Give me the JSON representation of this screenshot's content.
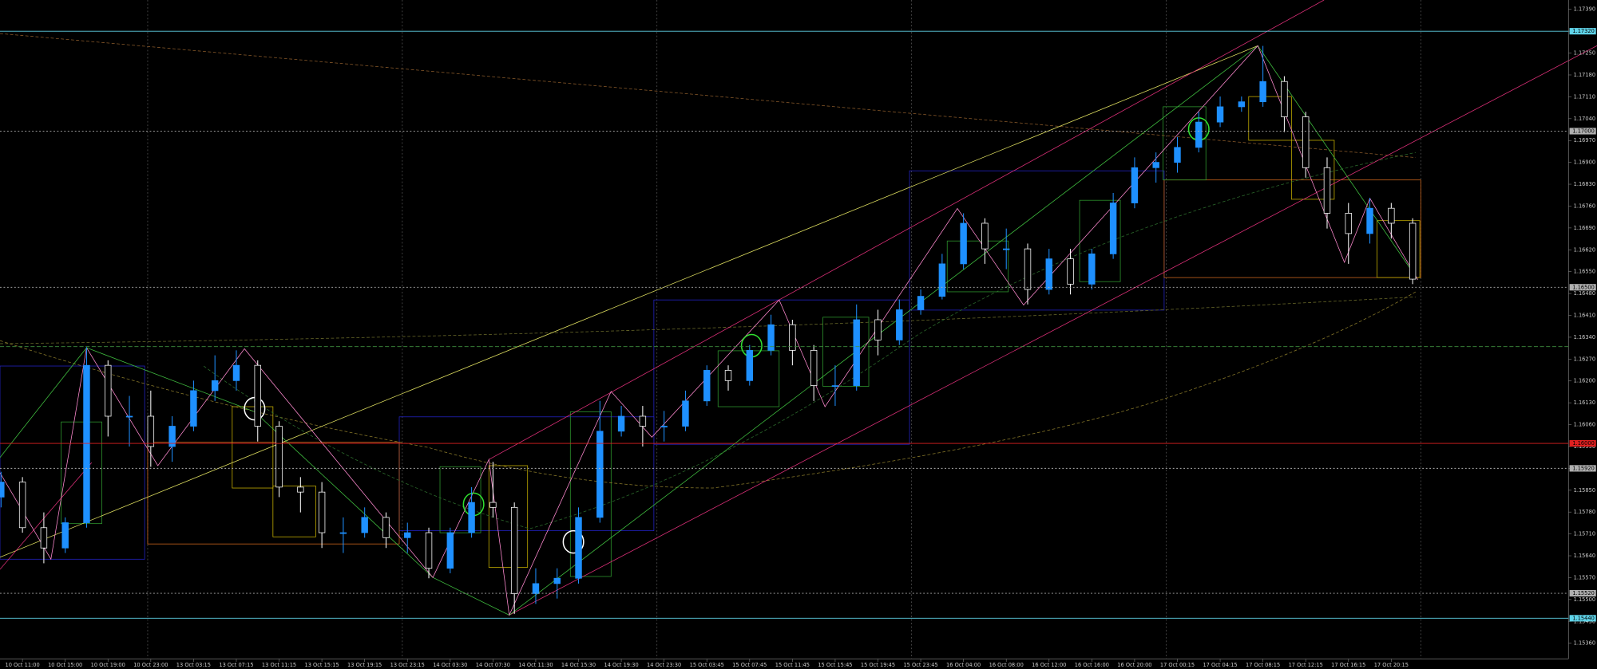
{
  "chart_data": {
    "type": "candlestick",
    "up_color": "#1e90ff",
    "down_color": "#ffffff",
    "ylim": [
      1.1531,
      1.1742
    ],
    "xlim": [
      -0.05,
      74.62
    ],
    "yticks": [
      {
        "value": 1.1739,
        "label": "1.17390"
      },
      {
        "value": 1.1732,
        "label": "1.17320"
      },
      {
        "value": 1.1725,
        "label": "1.17250"
      },
      {
        "value": 1.1718,
        "label": "1.17180"
      },
      {
        "value": 1.1711,
        "label": "1.17110"
      },
      {
        "value": 1.1704,
        "label": "1.17040"
      },
      {
        "value": 1.1697,
        "label": "1.16970"
      },
      {
        "value": 1.169,
        "label": "1.16900"
      },
      {
        "value": 1.1683,
        "label": "1.16830"
      },
      {
        "value": 1.1676,
        "label": "1.16760"
      },
      {
        "value": 1.1669,
        "label": "1.16690"
      },
      {
        "value": 1.1662,
        "label": "1.16620"
      },
      {
        "value": 1.1655,
        "label": "1.16550"
      },
      {
        "value": 1.1648,
        "label": "1.16480"
      },
      {
        "value": 1.1641,
        "label": "1.16410"
      },
      {
        "value": 1.1634,
        "label": "1.16340"
      },
      {
        "value": 1.1627,
        "label": "1.16270"
      },
      {
        "value": 1.162,
        "label": "1.16200"
      },
      {
        "value": 1.1613,
        "label": "1.16130"
      },
      {
        "value": 1.1606,
        "label": "1.16060"
      },
      {
        "value": 1.1599,
        "label": "1.15990"
      },
      {
        "value": 1.1592,
        "label": "1.15920"
      },
      {
        "value": 1.1585,
        "label": "1.15850"
      },
      {
        "value": 1.1578,
        "label": "1.15780"
      },
      {
        "value": 1.1571,
        "label": "1.15710"
      },
      {
        "value": 1.1564,
        "label": "1.15640"
      },
      {
        "value": 1.1557,
        "label": "1.15570"
      },
      {
        "value": 1.155,
        "label": "1.15500"
      },
      {
        "value": 1.1543,
        "label": "1.15430"
      },
      {
        "value": 1.1536,
        "label": "1.15360"
      }
    ],
    "xticks": [
      {
        "value": 1,
        "label": "10 Oct 11:00"
      },
      {
        "value": 3,
        "label": "10 Oct 15:00"
      },
      {
        "value": 5,
        "label": "10 Oct 19:00"
      },
      {
        "value": 7,
        "label": "10 Oct 23:00"
      },
      {
        "value": 9,
        "label": "13 Oct 03:15"
      },
      {
        "value": 11,
        "label": "13 Oct 07:15"
      },
      {
        "value": 13,
        "label": "13 Oct 11:15"
      },
      {
        "value": 15,
        "label": "13 Oct 15:15"
      },
      {
        "value": 17,
        "label": "13 Oct 19:15"
      },
      {
        "value": 19,
        "label": "13 Oct 23:15"
      },
      {
        "value": 21,
        "label": "14 Oct 03:30"
      },
      {
        "value": 23,
        "label": "14 Oct 07:30"
      },
      {
        "value": 25,
        "label": "14 Oct 11:30"
      },
      {
        "value": 27,
        "label": "14 Oct 15:30"
      },
      {
        "value": 29,
        "label": "14 Oct 19:30"
      },
      {
        "value": 31,
        "label": "14 Oct 23:30"
      },
      {
        "value": 33,
        "label": "15 Oct 03:45"
      },
      {
        "value": 35,
        "label": "15 Oct 07:45"
      },
      {
        "value": 37,
        "label": "15 Oct 11:45"
      },
      {
        "value": 39,
        "label": "15 Oct 15:45"
      },
      {
        "value": 41,
        "label": "15 Oct 19:45"
      },
      {
        "value": 43,
        "label": "15 Oct 23:45"
      },
      {
        "value": 45,
        "label": "16 Oct 04:00"
      },
      {
        "value": 47,
        "label": "16 Oct 08:00"
      },
      {
        "value": 49,
        "label": "16 Oct 12:00"
      },
      {
        "value": 51,
        "label": "16 Oct 16:00"
      },
      {
        "value": 53,
        "label": "16 Oct 20:00"
      },
      {
        "value": 55,
        "label": "17 Oct 00:15"
      },
      {
        "value": 57,
        "label": "17 Oct 04:15"
      },
      {
        "value": 59,
        "label": "17 Oct 08:15"
      },
      {
        "value": 61,
        "label": "17 Oct 12:15"
      },
      {
        "value": 63,
        "label": "17 Oct 16:15"
      },
      {
        "value": 65,
        "label": "17 Oct 20:15"
      }
    ],
    "open": [
      1.15828,
      1.15876,
      1.1573,
      1.15665,
      1.15746,
      1.1625,
      1.16087,
      1.16087,
      1.1599,
      1.16055,
      1.16169,
      1.16201,
      1.1625,
      1.16055,
      1.1586,
      1.15844,
      1.15714,
      1.15714,
      1.15763,
      1.15698,
      1.15714,
      1.156,
      1.15714,
      1.15811,
      1.15795,
      1.15519,
      1.15551,
      1.15568,
      1.15763,
      1.16039,
      1.16087,
      1.16055,
      1.16055,
      1.16136,
      1.16234,
      1.16201,
      1.16298,
      1.1638,
      1.16298,
      1.16185,
      1.16185,
      1.16396,
      1.16331,
      1.16428,
      1.16471,
      1.16575,
      1.16705,
      1.16623,
      1.16623,
      1.16493,
      1.16591,
      1.1651,
      1.16607,
      1.1677,
      1.16883,
      1.169,
      1.16948,
      1.17029,
      1.17078,
      1.17094,
      1.17159,
      1.17046,
      1.16883,
      1.16737,
      1.16672,
      1.16753,
      1.16705
    ],
    "high": [
      1.15909,
      1.15892,
      1.15779,
      1.15763,
      1.16308,
      1.16266,
      1.16152,
      1.16169,
      1.16087,
      1.16201,
      1.16282,
      1.16298,
      1.16266,
      1.16071,
      1.15892,
      1.15876,
      1.15763,
      1.15795,
      1.15779,
      1.15746,
      1.1573,
      1.1573,
      1.1586,
      1.15941,
      1.15811,
      1.156,
      1.156,
      1.15795,
      1.16136,
      1.1612,
      1.1612,
      1.16104,
      1.16169,
      1.1625,
      1.1625,
      1.16315,
      1.16412,
      1.16396,
      1.16315,
      1.1625,
      1.16445,
      1.16428,
      1.16461,
      1.16493,
      1.16607,
      1.16737,
      1.16721,
      1.16688,
      1.1664,
      1.16623,
      1.16623,
      1.16623,
      1.16802,
      1.16916,
      1.16932,
      1.16981,
      1.17062,
      1.17111,
      1.17111,
      1.17273,
      1.17176,
      1.17062,
      1.16916,
      1.1677,
      1.16786,
      1.1677,
      1.16721
    ],
    "low": [
      1.15795,
      1.15714,
      1.15616,
      1.15649,
      1.1573,
      1.16022,
      1.1599,
      1.15925,
      1.15941,
      1.16039,
      1.16136,
      1.16169,
      1.16006,
      1.15828,
      1.15779,
      1.15665,
      1.15649,
      1.15698,
      1.15665,
      1.15649,
      1.15568,
      1.15584,
      1.15698,
      1.15763,
      1.15454,
      1.15486,
      1.15503,
      1.15551,
      1.15746,
      1.16022,
      1.1599,
      1.16006,
      1.16039,
      1.1612,
      1.16169,
      1.16185,
      1.16282,
      1.1625,
      1.16136,
      1.1612,
      1.16169,
      1.16282,
      1.16315,
      1.16412,
      1.16461,
      1.16558,
      1.16575,
      1.16558,
      1.16445,
      1.16477,
      1.16477,
      1.16493,
      1.16591,
      1.16753,
      1.16835,
      1.16867,
      1.16932,
      1.17013,
      1.17062,
      1.17078,
      1.16997,
      1.16851,
      1.16688,
      1.16575,
      1.1664,
      1.16656,
      1.1651
    ],
    "close": [
      1.15876,
      1.1573,
      1.15665,
      1.15746,
      1.1625,
      1.16087,
      1.16087,
      1.1599,
      1.16055,
      1.16169,
      1.16201,
      1.1625,
      1.16055,
      1.1586,
      1.15844,
      1.15714,
      1.15714,
      1.15763,
      1.15698,
      1.15714,
      1.156,
      1.15714,
      1.15811,
      1.15795,
      1.15519,
      1.15551,
      1.15568,
      1.15763,
      1.16039,
      1.16087,
      1.16055,
      1.16055,
      1.16136,
      1.16234,
      1.16201,
      1.16298,
      1.1638,
      1.16298,
      1.16185,
      1.16185,
      1.16396,
      1.16331,
      1.16428,
      1.16471,
      1.16575,
      1.16705,
      1.16623,
      1.16623,
      1.16493,
      1.16591,
      1.1651,
      1.16607,
      1.1677,
      1.16883,
      1.169,
      1.16948,
      1.17029,
      1.17078,
      1.17094,
      1.17159,
      1.17046,
      1.16883,
      1.16737,
      1.16672,
      1.16753,
      1.16705,
      1.16526
    ],
    "levels": [
      {
        "value": 1.1732,
        "label": "1.17320",
        "color": "#5fd3e8",
        "style": "solid"
      },
      {
        "value": 1.17,
        "label": "1.17000",
        "color": "#b0b0b0",
        "style": "dotted"
      },
      {
        "value": 1.165,
        "label": "1.16500",
        "color": "#b0b0b0",
        "style": "dotted"
      },
      {
        "value": 1.1631,
        "color": "#3f8f3f",
        "style": "dashed"
      },
      {
        "value": 1.16,
        "label": "1.16000",
        "color": "#e02020",
        "style": "solid"
      },
      {
        "value": 1.1592,
        "label": "1.15920",
        "color": "#b0b0b0",
        "style": "dotted"
      },
      {
        "value": 1.1552,
        "label": "1.15520",
        "color": "#b0b0b0",
        "style": "dotted"
      },
      {
        "value": 1.1544,
        "label": "1.15440",
        "color": "#5fd3e8",
        "style": "solid"
      }
    ]
  }
}
